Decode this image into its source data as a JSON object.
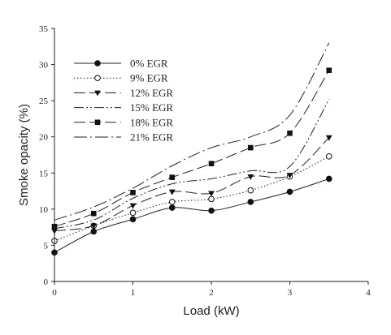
{
  "chart_data": {
    "type": "line",
    "xlabel": "Load (kW)",
    "ylabel": "Smoke opacity (%)",
    "xlim": [
      0,
      4
    ],
    "ylim": [
      0,
      35
    ],
    "xticks": [
      0,
      1,
      2,
      3,
      4
    ],
    "yticks": [
      0,
      5,
      10,
      15,
      20,
      25,
      30,
      35
    ],
    "grid": false,
    "legend_position": "top-left",
    "series": [
      {
        "name": "0% EGR",
        "line": "solid",
        "marker": "filled-circle",
        "x": [
          0,
          0.5,
          1,
          1.5,
          2,
          2.5,
          3,
          3.5
        ],
        "y": [
          4.0,
          6.9,
          8.6,
          10.2,
          9.8,
          11.0,
          12.4,
          14.2
        ]
      },
      {
        "name": "9% EGR",
        "line": "dotted",
        "marker": "open-circle",
        "x": [
          0,
          0.5,
          1,
          1.5,
          2,
          2.5,
          3,
          3.5
        ],
        "y": [
          5.6,
          7.7,
          9.5,
          11.0,
          11.4,
          12.6,
          14.5,
          17.3
        ]
      },
      {
        "name": "12% EGR",
        "line": "long-dash",
        "marker": "filled-triangle-down",
        "x": [
          0,
          0.5,
          1,
          1.5,
          2,
          2.5,
          3,
          3.5
        ],
        "y": [
          7.0,
          7.7,
          10.5,
          12.4,
          12.2,
          14.5,
          14.7,
          19.9
        ]
      },
      {
        "name": "15% EGR",
        "line": "dash-dot-dot",
        "marker": "none",
        "x": [
          0,
          0.5,
          1,
          1.5,
          2,
          2.5,
          3,
          3.5
        ],
        "y": [
          7.3,
          8.5,
          11.5,
          13.5,
          14.2,
          15.3,
          15.9,
          25.2
        ]
      },
      {
        "name": "18% EGR",
        "line": "long-dash",
        "marker": "filled-square",
        "x": [
          0,
          0.5,
          1,
          1.5,
          2,
          2.5,
          3,
          3.5
        ],
        "y": [
          7.6,
          9.4,
          12.3,
          14.4,
          16.3,
          18.5,
          20.5,
          29.2
        ]
      },
      {
        "name": "21% EGR",
        "line": "dash-dot",
        "marker": "none",
        "x": [
          0,
          0.5,
          1,
          1.5,
          2,
          2.5,
          3,
          3.5
        ],
        "y": [
          8.5,
          10.3,
          12.9,
          16.0,
          18.5,
          20.0,
          23.0,
          33.0
        ]
      }
    ]
  }
}
